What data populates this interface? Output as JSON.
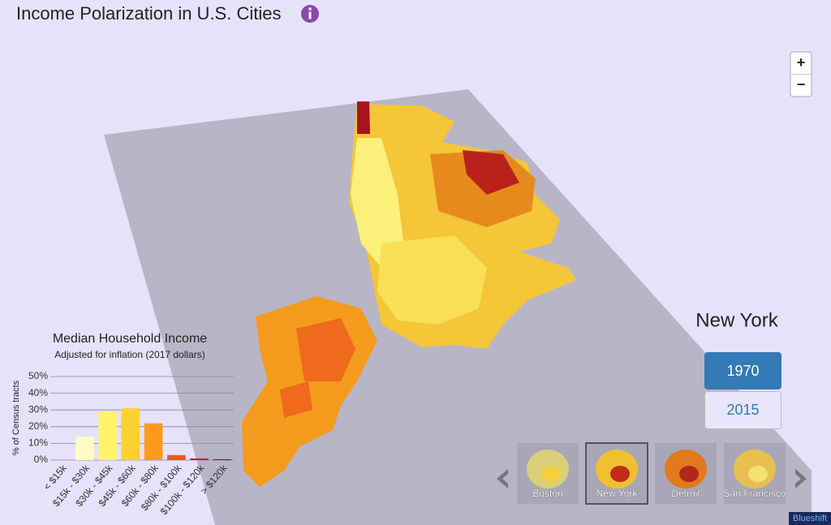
{
  "header": {
    "title": "Income Polarization in U.S. Cities"
  },
  "zoom": {
    "in": "+",
    "out": "−"
  },
  "city": "New York",
  "years": [
    "1970",
    "2015"
  ],
  "cities": [
    "Boston",
    "New York",
    "Detroit",
    "San Francisco"
  ],
  "footer": "Blueshift",
  "chart_data": {
    "type": "bar",
    "title": "Median Household Income",
    "subtitle": "Adjusted for inflation (2017 dollars)",
    "y_label": "% of Census tracts",
    "categories": [
      "< $15k",
      "$15k - $30k",
      "$30k - $45k",
      "$45k - $60k",
      "$60k - $80k",
      "$80k - $100k",
      "$100k - $120k",
      "> $120k"
    ],
    "values": [
      0,
      14,
      29,
      31,
      22,
      3,
      1,
      0.5
    ],
    "colors": [
      "#ffffd4",
      "#fffbc4",
      "#fff36b",
      "#fdd12f",
      "#fb9a1c",
      "#ef5a14",
      "#c8281a",
      "#8e0e22"
    ],
    "ylim": [
      0,
      50
    ],
    "yticks": [
      {
        "value": 0,
        "label": "0%"
      },
      {
        "value": 10,
        "label": "10%"
      },
      {
        "value": 20,
        "label": "20%"
      },
      {
        "value": 30,
        "label": "30%"
      },
      {
        "value": 40,
        "label": "40%"
      },
      {
        "value": 50,
        "label": "50%"
      }
    ],
    "grid": true
  }
}
